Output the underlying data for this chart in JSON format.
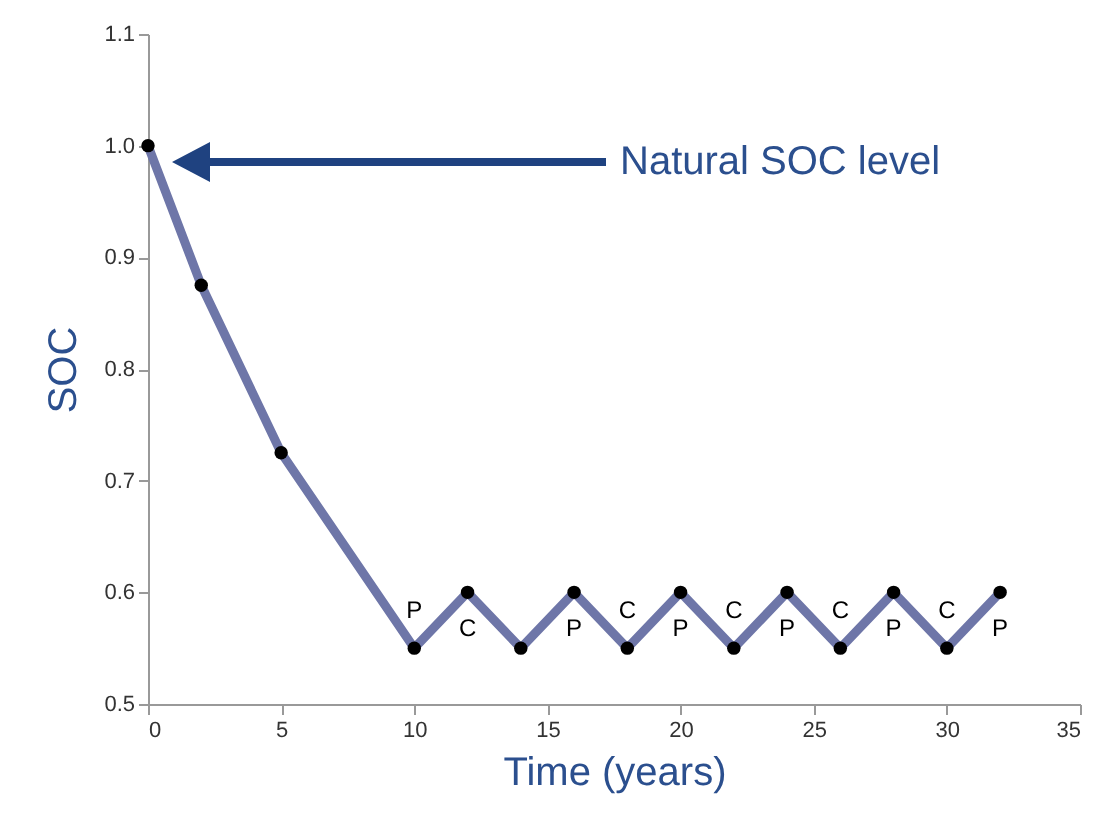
{
  "chart_data": {
    "type": "line",
    "xlabel": "Time (years)",
    "ylabel": "SOC",
    "x": [
      0,
      2,
      5,
      10,
      12,
      14,
      16,
      18,
      20,
      22,
      24,
      26,
      28,
      30,
      32
    ],
    "series": [
      {
        "color": "#6e76a8",
        "values": [
          1.0,
          0.875,
          0.725,
          0.55,
          0.6,
          0.55,
          0.6,
          0.55,
          0.6,
          0.55,
          0.6,
          0.55,
          0.6,
          0.55,
          0.6
        ]
      }
    ],
    "xlim": [
      0,
      35
    ],
    "xticks": [
      0,
      5,
      10,
      15,
      20,
      25,
      30,
      35
    ],
    "ylim": [
      0.5,
      1.1
    ],
    "yticks": [
      0.5,
      0.6,
      0.7,
      0.8,
      0.9,
      {
        "value": 1,
        "label": "1.0"
      },
      1.1
    ],
    "marker": "circle",
    "line_style": "solid",
    "grid": false,
    "annotations": [
      "Natural SOC level",
      {
        "text": "P",
        "x": 10,
        "y": 0.55
      },
      {
        "text": "C",
        "x": 12,
        "y": 0.6
      },
      {
        "text": "P",
        "x": 16,
        "y": 0.6
      },
      {
        "text": "C",
        "x": 18,
        "y": 0.55
      },
      {
        "text": "P",
        "x": 20,
        "y": 0.6
      },
      {
        "text": "C",
        "x": 22,
        "y": 0.55
      },
      {
        "text": "P",
        "x": 24,
        "y": 0.6
      },
      {
        "text": "C",
        "x": 26,
        "y": 0.55
      },
      {
        "text": "P",
        "x": 28,
        "y": 0.6
      },
      {
        "text": "C",
        "x": 30,
        "y": 0.55
      },
      {
        "text": "P",
        "x": 32,
        "y": 0.6
      }
    ]
  }
}
